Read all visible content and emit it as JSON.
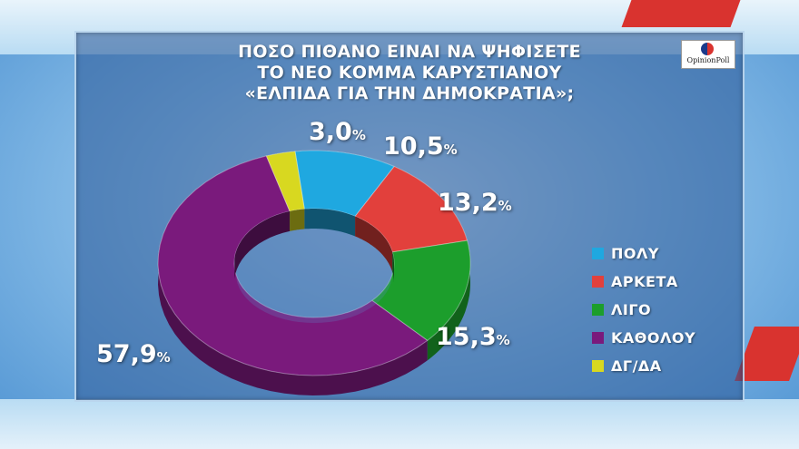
{
  "chart_data": {
    "type": "pie",
    "variant": "donut",
    "title_lines": [
      "ΠΟΣΟ ΠΙΘΑΝΟ ΕΙΝΑΙ ΝΑ ΨΗΦΙΣΕΤΕ",
      "ΤΟ ΝΕΟ ΚΟΜΜΑ ΚΑΡΥΣΤΙΑΝΟΥ",
      "«ΕΛΠΙΔΑ ΓΙΑ ΤΗΝ ΔΗΜΟΚΡΑΤΙΑ»;"
    ],
    "slices": [
      {
        "label": "ΠΟΛΥ",
        "value": 10.5,
        "display": "10,5",
        "color": "#1fa8e0"
      },
      {
        "label": "ΑΡΚΕΤΑ",
        "value": 13.2,
        "display": "13,2",
        "color": "#e2403c"
      },
      {
        "label": "ΛΙΓΟ",
        "value": 15.3,
        "display": "15,3",
        "color": "#1c9e2c"
      },
      {
        "label": "ΚΑΘΟΛΟΥ",
        "value": 57.9,
        "display": "57,9",
        "color": "#7a1a7c"
      },
      {
        "label": "ΔΓ/ΔΑ",
        "value": 3.0,
        "display": "3,0",
        "color": "#d8d820"
      }
    ],
    "percent_sign": "%",
    "legend_position": "right"
  },
  "logo": {
    "text": "OpinionPoll"
  }
}
